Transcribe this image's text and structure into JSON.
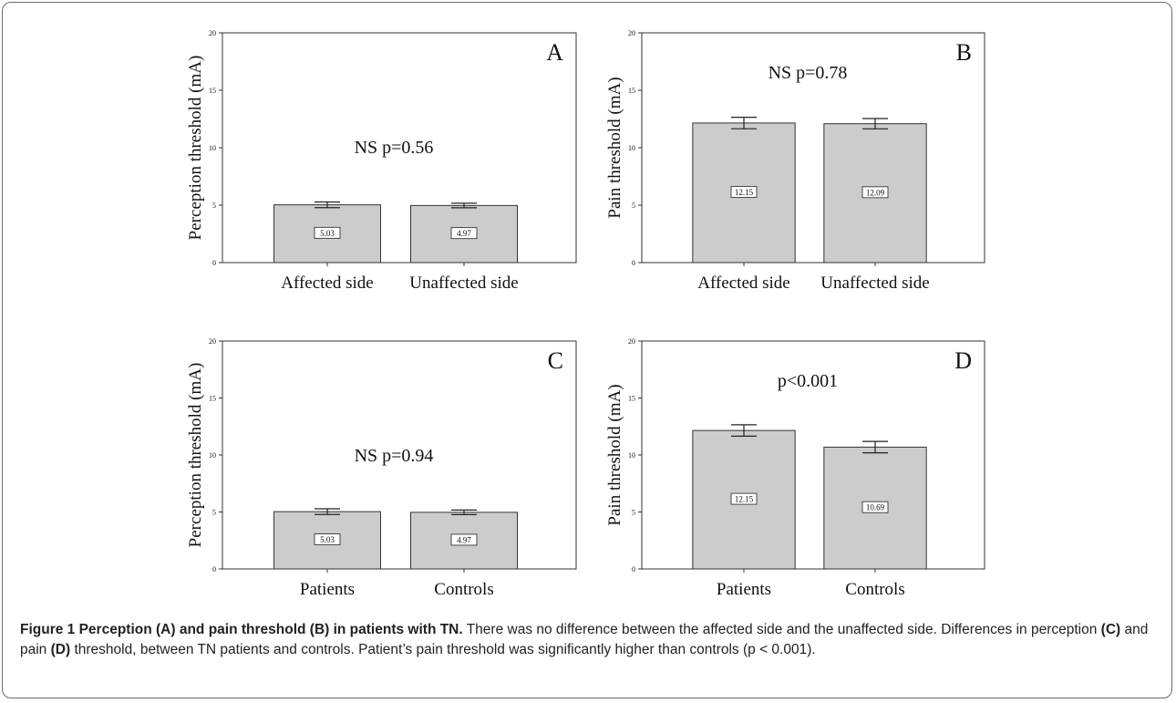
{
  "caption": {
    "title": "Figure 1 Perception (A) and pain threshold (B) in patients with TN.",
    "text_1": " There was no difference between the affected side and the unaffected side. Differences in perception ",
    "bold_c": "(C)",
    "text_2": " and pain ",
    "bold_d": "(D)",
    "text_3": " threshold, between TN patients and controls. Patient’s pain threshold was significantly higher than controls (p < 0.001)."
  },
  "chart_data": [
    {
      "type": "bar",
      "panel_label": "A",
      "annotation": "NS p=0.56",
      "ylabel": "Perception threshold (mA)",
      "xlabel": "",
      "ylim": [
        0,
        20
      ],
      "yticks": [
        0,
        5,
        10,
        15,
        20
      ],
      "categories": [
        "Affected side",
        "Unaffected side"
      ],
      "values": [
        5.03,
        4.97
      ],
      "value_labels": [
        "5.03",
        "4.97"
      ],
      "error": [
        0.25,
        0.2
      ],
      "bar_color": "#cccccc",
      "grid": false
    },
    {
      "type": "bar",
      "panel_label": "B",
      "annotation": "NS p=0.78",
      "ylabel": "Pain threshold (mA)",
      "xlabel": "",
      "ylim": [
        0,
        20
      ],
      "yticks": [
        0,
        5,
        10,
        15,
        20
      ],
      "categories": [
        "Affected side",
        "Unaffected side"
      ],
      "values": [
        12.15,
        12.09
      ],
      "value_labels": [
        "12.15",
        "12.09"
      ],
      "error": [
        0.5,
        0.45
      ],
      "bar_color": "#cccccc",
      "grid": false
    },
    {
      "type": "bar",
      "panel_label": "C",
      "annotation": "NS p=0.94",
      "ylabel": "Perception threshold (mA)",
      "xlabel": "",
      "ylim": [
        0,
        20
      ],
      "yticks": [
        0,
        5,
        10,
        15,
        20
      ],
      "categories": [
        "Patients",
        "Controls"
      ],
      "values": [
        5.03,
        4.97
      ],
      "value_labels": [
        "5.03",
        "4.97"
      ],
      "error": [
        0.25,
        0.2
      ],
      "bar_color": "#cccccc",
      "grid": false
    },
    {
      "type": "bar",
      "panel_label": "D",
      "annotation": "p<0.001",
      "ylabel": "Pain threshold (mA)",
      "xlabel": "",
      "ylim": [
        0,
        20
      ],
      "yticks": [
        0,
        5,
        10,
        15,
        20
      ],
      "categories": [
        "Patients",
        "Controls"
      ],
      "values": [
        12.15,
        10.69
      ],
      "value_labels": [
        "12.15",
        "10.69"
      ],
      "error": [
        0.5,
        0.5
      ],
      "bar_color": "#cccccc",
      "grid": false
    }
  ]
}
